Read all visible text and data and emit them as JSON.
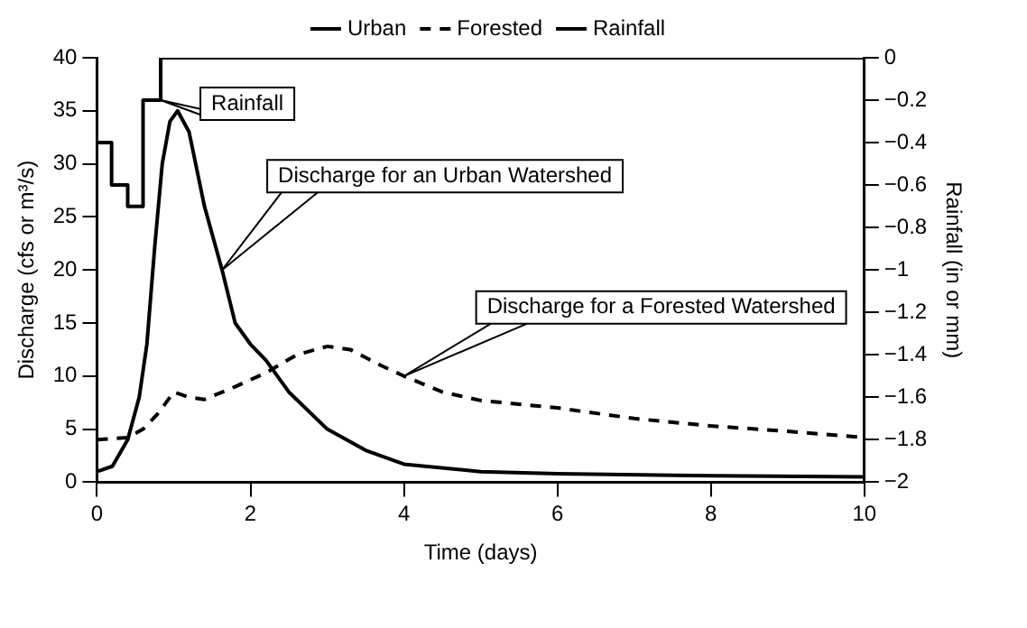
{
  "chart_data": {
    "type": "line",
    "xlabel": "Time (days)",
    "ylabel": "Discharge (cfs or m³/s)",
    "y2label": "Rainfall (in or mm)",
    "xlim": [
      0,
      10
    ],
    "xticks": [
      0,
      2,
      4,
      6,
      8,
      10
    ],
    "ylim": [
      0,
      40
    ],
    "yticks": [
      0,
      5,
      10,
      15,
      20,
      25,
      30,
      35,
      40
    ],
    "y2lim": [
      -2,
      0
    ],
    "y2ticks": [
      0,
      -0.2,
      -0.4,
      -0.6,
      -0.8,
      -1,
      -1.2,
      -1.4,
      -1.6,
      -1.8,
      -2
    ],
    "grid": false,
    "legend": "top",
    "marker": "none",
    "series": [
      {
        "name": "Urban",
        "color": "#000000",
        "line_style": "solid",
        "x": [
          0,
          0.2,
          0.4,
          0.55,
          0.65,
          0.75,
          0.85,
          0.95,
          1.05,
          1.2,
          1.4,
          1.63,
          1.8,
          2,
          2.2,
          2.5,
          3,
          3.5,
          4,
          5,
          6,
          8,
          10
        ],
        "values": [
          1,
          1.5,
          4,
          8,
          13,
          22,
          30,
          34,
          35,
          33,
          26,
          20,
          15,
          13,
          11.5,
          8.5,
          5,
          3,
          1.7,
          1,
          0.8,
          0.6,
          0.5
        ]
      },
      {
        "name": "Forested",
        "color": "#000000",
        "line_style": "dashed",
        "x": [
          0,
          0.4,
          0.6,
          0.8,
          1,
          1.2,
          1.4,
          1.8,
          2.2,
          2.6,
          3,
          3.3,
          3.7,
          4,
          4.5,
          5,
          6,
          7,
          8,
          9,
          10
        ],
        "values": [
          4,
          4.2,
          5,
          6.5,
          8.5,
          8,
          7.8,
          9,
          10.3,
          12,
          12.8,
          12.5,
          11,
          10,
          8.5,
          7.7,
          7,
          6,
          5.3,
          4.8,
          4.2
        ]
      },
      {
        "name": "Rainfall",
        "type": "step",
        "axis": "y2",
        "color": "#000000",
        "line_style": "solid",
        "x": [
          0,
          0.19,
          0.4,
          0.6,
          0.83,
          10
        ],
        "values": [
          -0.4,
          -0.6,
          -0.7,
          -0.2,
          0,
          0
        ]
      }
    ],
    "annotations": [
      {
        "text": "Rainfall",
        "x": 0.83,
        "y": 36
      },
      {
        "text": "Discharge for an Urban Watershed",
        "x": 1.63,
        "y": 20
      },
      {
        "text": "Discharge for a Forested Watershed",
        "x": 4,
        "y": 10
      }
    ]
  }
}
